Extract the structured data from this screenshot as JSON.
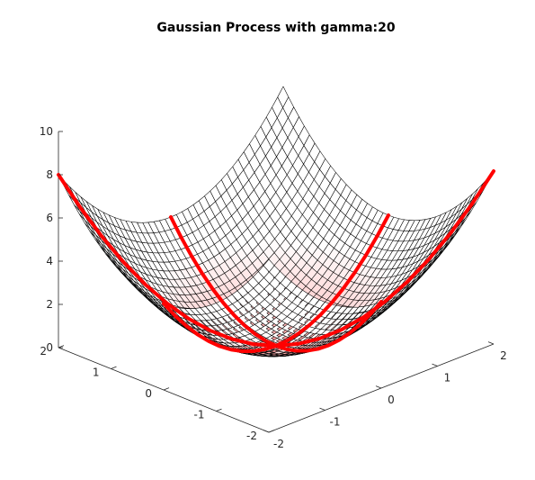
{
  "chart_data": {
    "type": "surface3d",
    "title": "Gaussian Process with gamma:20",
    "xlabel": "",
    "ylabel": "",
    "zlabel": "",
    "xlim": [
      -2,
      2
    ],
    "ylim": [
      -2,
      2
    ],
    "zlim": [
      0,
      10
    ],
    "x_ticks": [
      -2,
      -1,
      0,
      1,
      2
    ],
    "y_ticks": [
      -2,
      -1,
      0,
      1,
      2
    ],
    "z_ticks": [
      0,
      2,
      4,
      6,
      8,
      10
    ],
    "x_tick_labels": [
      "-2",
      "-1",
      "0",
      "1",
      "2"
    ],
    "y_tick_labels": [
      "-2",
      "-1",
      "0",
      "1",
      "2"
    ],
    "z_tick_labels": [
      "0",
      "2",
      "4",
      "6",
      "8",
      "10"
    ],
    "surface": {
      "function": "z = x^2 + y^2",
      "x_range": [
        -2,
        2
      ],
      "y_range": [
        -2,
        2
      ],
      "grid_samples": 41,
      "edge_color": "#000000",
      "face_color": "#ffffff"
    },
    "series": [
      {
        "type": "line3d",
        "note_values": "samples along y = 0",
        "color": "#ff0000",
        "x": [
          -2.0,
          -1.8,
          -1.6,
          -1.4,
          -1.2,
          -1.0,
          -0.8,
          -0.6,
          -0.4,
          -0.2,
          0.0,
          0.2,
          0.4,
          0.6,
          0.8,
          1.0,
          1.2,
          1.4,
          1.6,
          1.8,
          2.0
        ],
        "y": [
          0,
          0,
          0,
          0,
          0,
          0,
          0,
          0,
          0,
          0,
          0,
          0,
          0,
          0,
          0,
          0,
          0,
          0,
          0,
          0,
          0
        ],
        "z": [
          4.0,
          3.24,
          2.56,
          1.96,
          1.44,
          1.0,
          0.64,
          0.36,
          0.16,
          0.04,
          0.0,
          0.04,
          0.16,
          0.36,
          0.64,
          1.0,
          1.44,
          1.96,
          2.56,
          3.24,
          4.0
        ]
      },
      {
        "type": "line3d",
        "note_values": "samples along x = 0",
        "color": "#ff0000",
        "x": [
          0,
          0,
          0,
          0,
          0,
          0,
          0,
          0,
          0,
          0,
          0,
          0,
          0,
          0,
          0,
          0,
          0,
          0,
          0,
          0,
          0
        ],
        "y": [
          -2.0,
          -1.8,
          -1.6,
          -1.4,
          -1.2,
          -1.0,
          -0.8,
          -0.6,
          -0.4,
          -0.2,
          0.0,
          0.2,
          0.4,
          0.6,
          0.8,
          1.0,
          1.2,
          1.4,
          1.6,
          1.8,
          2.0
        ],
        "z": [
          4.0,
          3.24,
          2.56,
          1.96,
          1.44,
          1.0,
          0.64,
          0.36,
          0.16,
          0.04,
          0.0,
          0.04,
          0.16,
          0.36,
          0.64,
          1.0,
          1.44,
          1.96,
          2.56,
          3.24,
          4.0
        ]
      },
      {
        "type": "line3d",
        "note_values": "samples along x = -y",
        "color": "#ff0000",
        "x": [
          -2.0,
          -1.8,
          -1.6,
          -1.4,
          -1.2,
          -1.0,
          -0.8,
          -0.6,
          -0.4,
          -0.2,
          0.0,
          0.2,
          0.4,
          0.6,
          0.8,
          1.0,
          1.2,
          1.4,
          1.6,
          1.8,
          2.0
        ],
        "y": [
          2.0,
          1.8,
          1.6,
          1.4,
          1.2,
          1.0,
          0.8,
          0.6,
          0.4,
          0.2,
          0.0,
          -0.2,
          -0.4,
          -0.6,
          -0.8,
          -1.0,
          -1.2,
          -1.4,
          -1.6,
          -1.8,
          -2.0
        ],
        "z": [
          8.0,
          6.48,
          5.12,
          3.92,
          2.88,
          2.0,
          1.28,
          0.72,
          0.32,
          0.08,
          0.0,
          0.08,
          0.32,
          0.72,
          1.28,
          2.0,
          2.88,
          3.92,
          5.12,
          6.48,
          8.0
        ]
      }
    ]
  }
}
